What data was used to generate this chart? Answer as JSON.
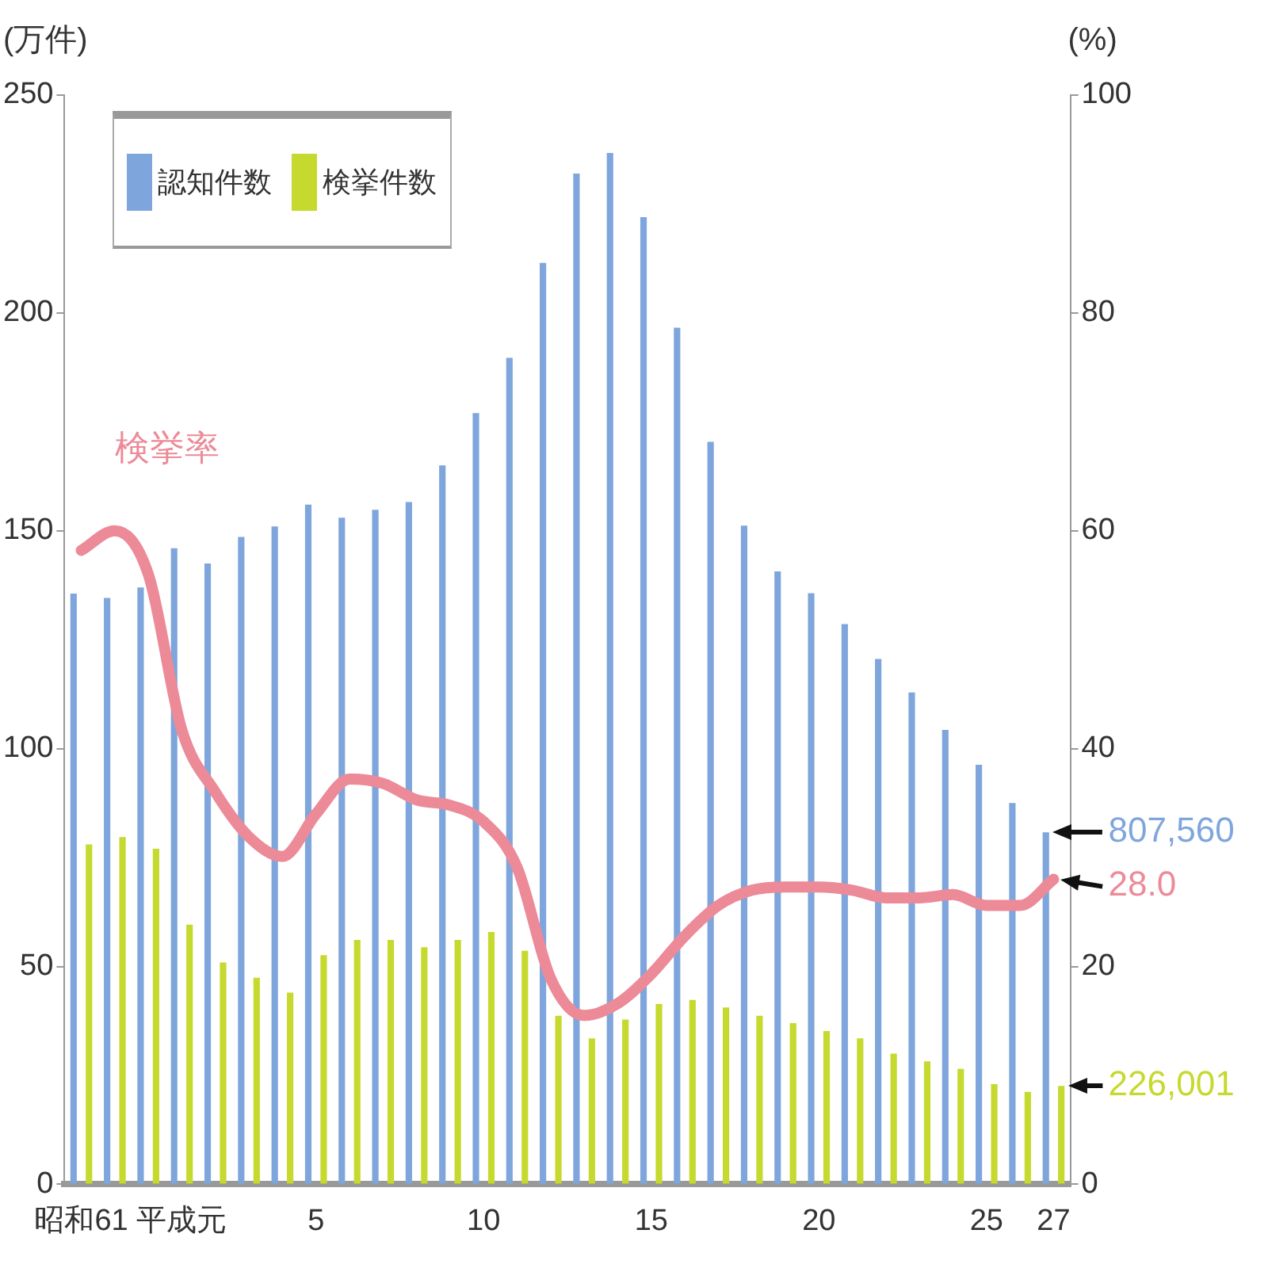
{
  "chart_data": {
    "type": "bar",
    "ylabel": "(万件)",
    "y2label": "(%)",
    "categories": [
      "昭和61",
      null,
      null,
      "平成元",
      null,
      null,
      null,
      "5",
      null,
      null,
      null,
      null,
      "10",
      null,
      null,
      null,
      null,
      "15",
      null,
      null,
      null,
      null,
      "20",
      null,
      null,
      null,
      null,
      "25",
      null,
      "27"
    ],
    "series": [
      {
        "name": "認知件数",
        "color": "#7fa6dc",
        "values": [
          135.6,
          134.6,
          137,
          146,
          142.5,
          148.6,
          151,
          156,
          153,
          154.8,
          156.6,
          165,
          177,
          189.7,
          211.5,
          232,
          236.7,
          222,
          196.6,
          170.4,
          151.2,
          140.7,
          135.7,
          128.6,
          120.6,
          112.9,
          104.3,
          96.3,
          87.5,
          80.8
        ]
      },
      {
        "name": "検挙件数",
        "color": "#c6d92e",
        "values": [
          78,
          79.7,
          77,
          59.6,
          50.9,
          47.4,
          44,
          52.6,
          56.1,
          56.1,
          54.4,
          56.1,
          57.9,
          53.6,
          38.7,
          33.5,
          37.8,
          41.4,
          42.3,
          40.6,
          38.7,
          37,
          35.2,
          33.5,
          30,
          28.2,
          26.5,
          23,
          21.2,
          22.6
        ]
      },
      {
        "name": "検挙率",
        "type": "line",
        "axis": "y2",
        "color": "#ec8a98",
        "marker": "none",
        "values": [
          58.2,
          60,
          56,
          41.7,
          36,
          31.9,
          30.1,
          34,
          37.2,
          36.8,
          35.3,
          34.8,
          33.3,
          29.1,
          18.9,
          15.5,
          16.6,
          19.3,
          22.8,
          25.6,
          27,
          27.3,
          27.3,
          27,
          26.3,
          26.3,
          26.6,
          25.6,
          25.6,
          28.0
        ],
        "value_labels": [
          null,
          null,
          null,
          null,
          null,
          null,
          null,
          null,
          null,
          null,
          null,
          null,
          null,
          null,
          null,
          null,
          null,
          null,
          null,
          null,
          null,
          null,
          null,
          null,
          null,
          null,
          null,
          null,
          null,
          "28.0"
        ]
      }
    ],
    "ylim": [
      0,
      250
    ],
    "yticks": [
      0,
      50,
      100,
      150,
      200,
      250
    ],
    "y2lim": [
      0,
      100
    ],
    "y2ticks": [
      0,
      20,
      40,
      60,
      80,
      100
    ],
    "annotations": [
      {
        "text": "807,560",
        "x": "27",
        "y": 80.8
      },
      {
        "text": "226,001",
        "x": "27",
        "y": 22.6
      }
    ],
    "grid": false,
    "legend": "top left"
  }
}
